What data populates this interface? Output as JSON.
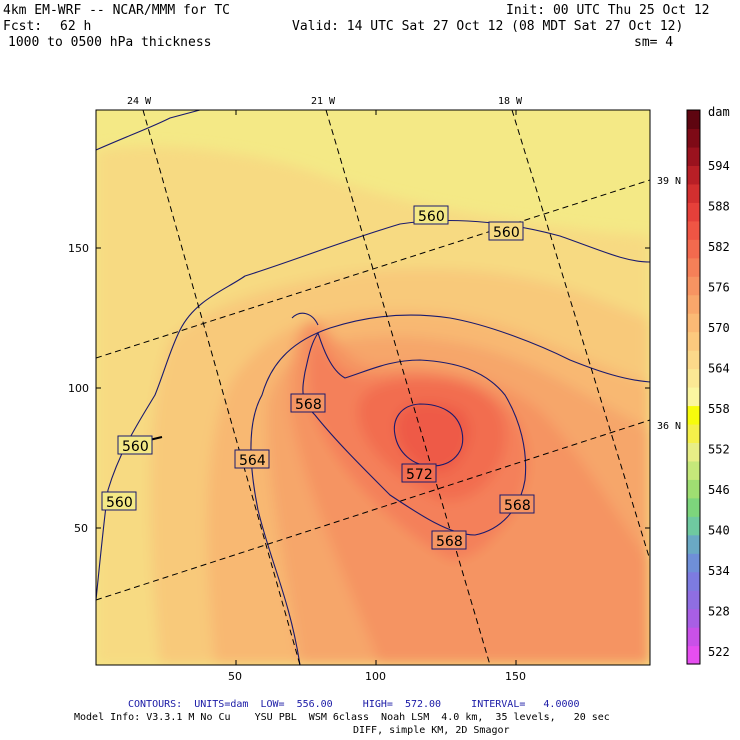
{
  "header": {
    "model_title": "4km EM-WRF -- NCAR/MMM for TC",
    "init": "Init: 00 UTC Thu 25 Oct 12",
    "fcst_label": "Fcst:",
    "fcst_value": "62 h",
    "valid": "Valid: 14 UTC Sat 27 Oct 12 (08 MDT Sat 27 Oct 12)",
    "field": "1000 to 0500 hPa thickness",
    "smoothing": "sm= 4"
  },
  "map": {
    "lon_labels": [
      "24 W",
      "21 W",
      "18 W"
    ],
    "lat_labels": [
      "39 N",
      "36 N"
    ],
    "x_ticks": [
      "50",
      "100",
      "150"
    ],
    "y_ticks": [
      "150",
      "100",
      "50"
    ],
    "contour_labels": [
      "560",
      "560",
      "560",
      "560",
      "568",
      "564",
      "572",
      "568",
      "568"
    ]
  },
  "colorbar": {
    "unit": "dam",
    "labels": [
      "594",
      "588",
      "582",
      "576",
      "570",
      "564",
      "558",
      "552",
      "546",
      "540",
      "534",
      "528",
      "522"
    ],
    "colors": [
      "#f7fc0c",
      "#f5f04a",
      "#e8ee86",
      "#c5e87a",
      "#9fde72",
      "#7dd57c",
      "#6fc9a0",
      "#6aa9c4",
      "#6f8fd8",
      "#7d7be0",
      "#8f6ee2",
      "#a85fe4",
      "#c951e8",
      "#e64ef0",
      "#ffffff",
      "#fbf6a0",
      "#fbe894",
      "#fcd98a",
      "#fcc97e",
      "#fbb975",
      "#f9a76b",
      "#f79462",
      "#f58058",
      "#f36a4e",
      "#ef5544",
      "#e5403a",
      "#d22f2f",
      "#b81f26",
      "#9a121e",
      "#7e0a16",
      "#5e0510"
    ]
  },
  "footer": {
    "contours": "CONTOURS:  UNITS=dam  LOW=  556.00     HIGH=  572.00     INTERVAL=   4.0000",
    "model_info": "Model Info: V3.3.1 M No Cu    YSU PBL  WSM 6class  Noah LSM  4.0 km,  35 levels,   20 sec",
    "diff": "DIFF, simple KM, 2D Smagor"
  }
}
